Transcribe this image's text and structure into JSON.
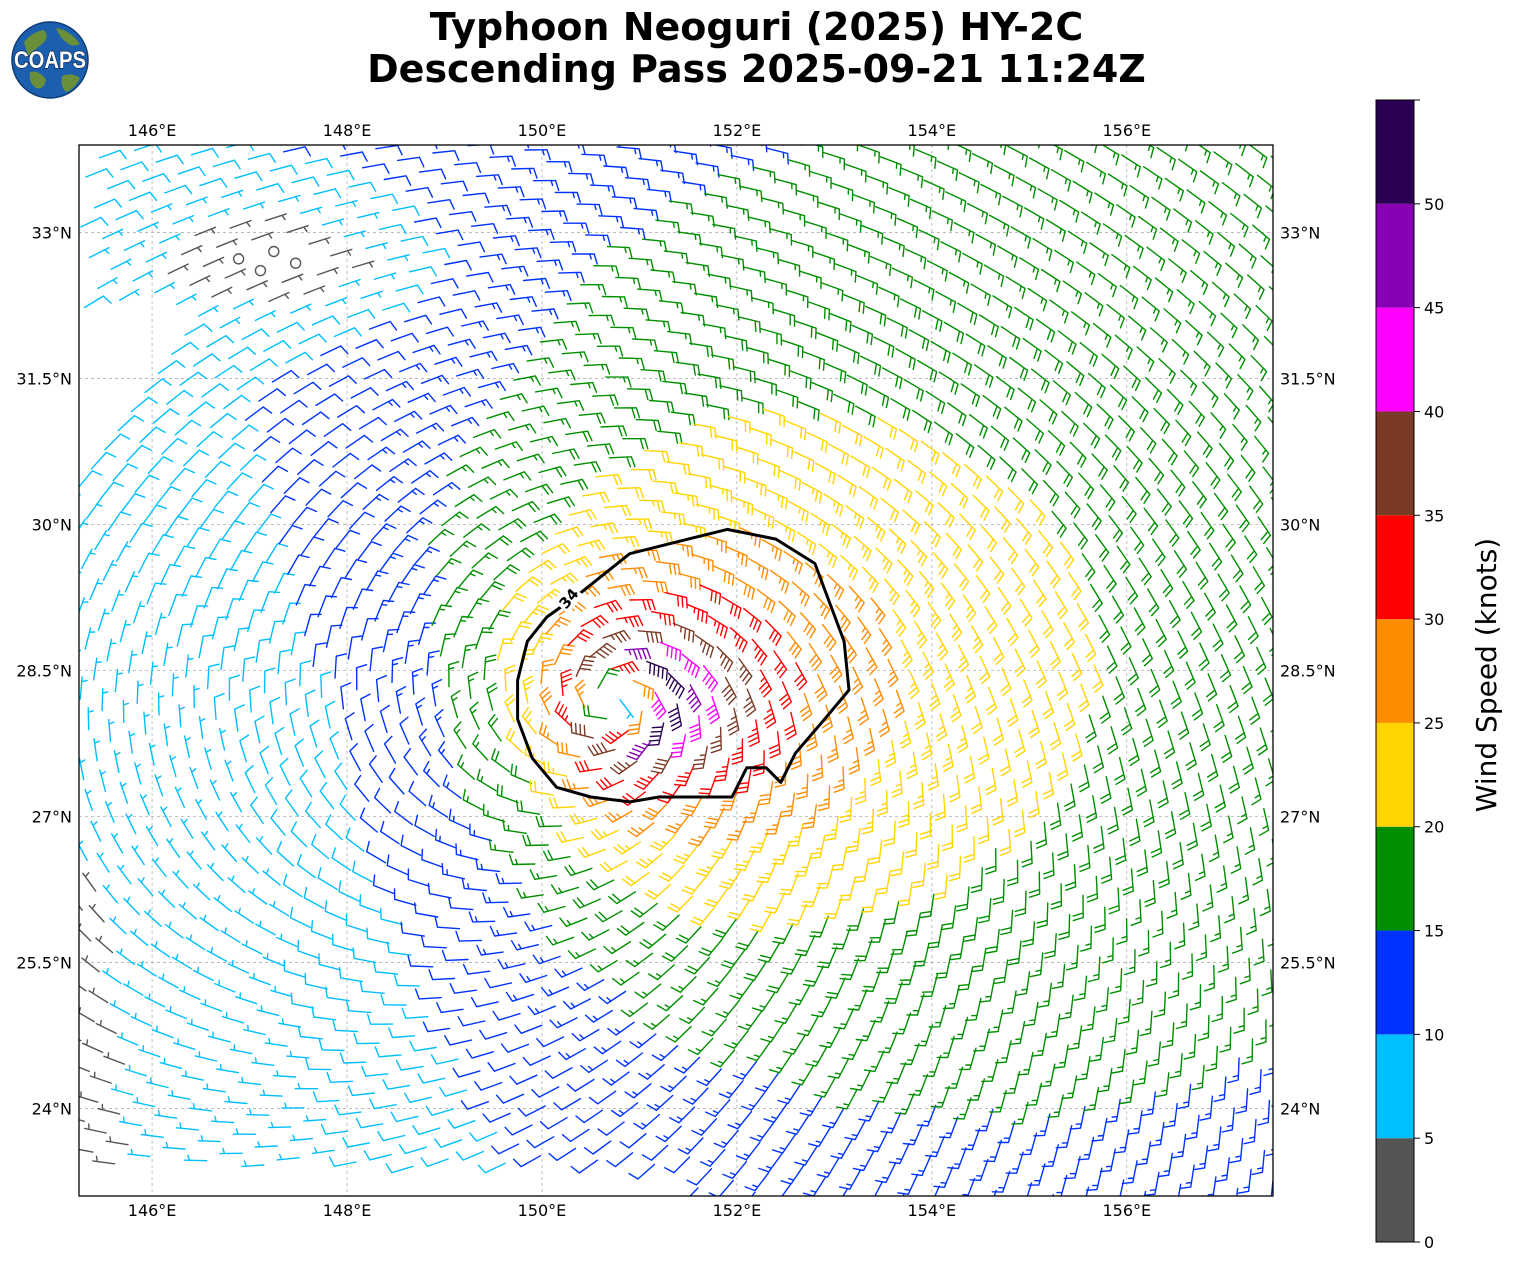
{
  "logo": {
    "text": "COAPS",
    "ocean_color": "#1b5fae",
    "land_color": "#6a8f3a"
  },
  "chart_data": {
    "type": "wind_barb_map",
    "title": "Typhoon Neoguri (2025) HY-2C",
    "subtitle": "Descending Pass 2025-09-21 11:24Z",
    "lon_range": [
      145.25,
      157.5
    ],
    "lat_range": [
      23.1,
      33.9
    ],
    "lon_ticks": [
      "146°E",
      "148°E",
      "150°E",
      "152°E",
      "154°E",
      "156°E"
    ],
    "lon_tick_values": [
      146,
      148,
      150,
      152,
      154,
      156
    ],
    "lat_ticks": [
      "24°N",
      "25.5°N",
      "27°N",
      "28.5°N",
      "30°N",
      "31.5°N",
      "33°N"
    ],
    "lat_tick_values": [
      24,
      25.5,
      27,
      28.5,
      30,
      31.5,
      33
    ],
    "gridlines": true,
    "storm_center": {
      "lon": 150.8,
      "lat": 28.2
    },
    "contour": {
      "label": "34",
      "value_knots": 34,
      "points": [
        [
          150.4,
          29.3
        ],
        [
          150.9,
          29.7
        ],
        [
          151.5,
          29.85
        ],
        [
          151.9,
          29.95
        ],
        [
          152.4,
          29.85
        ],
        [
          152.8,
          29.6
        ],
        [
          152.95,
          29.2
        ],
        [
          153.1,
          28.8
        ],
        [
          153.15,
          28.3
        ],
        [
          152.9,
          28.0
        ],
        [
          152.6,
          27.65
        ],
        [
          152.45,
          27.35
        ],
        [
          152.3,
          27.5
        ],
        [
          152.1,
          27.5
        ],
        [
          151.95,
          27.2
        ],
        [
          151.6,
          27.2
        ],
        [
          151.2,
          27.2
        ],
        [
          150.9,
          27.15
        ],
        [
          150.5,
          27.2
        ],
        [
          150.15,
          27.3
        ],
        [
          149.9,
          27.6
        ],
        [
          149.75,
          28.0
        ],
        [
          149.75,
          28.4
        ],
        [
          149.85,
          28.8
        ],
        [
          150.05,
          29.05
        ],
        [
          150.4,
          29.3
        ]
      ]
    },
    "colorbar": {
      "label": "Wind Speed (knots)",
      "tick_labels": [
        "0",
        "5",
        "10",
        "15",
        "20",
        "25",
        "30",
        "35",
        "40",
        "45",
        "50"
      ],
      "tick_values": [
        0,
        5,
        10,
        15,
        20,
        25,
        30,
        35,
        40,
        45,
        50
      ],
      "range": [
        0,
        55
      ],
      "bins": [
        {
          "min": 0,
          "max": 5,
          "color": "#555555"
        },
        {
          "min": 5,
          "max": 10,
          "color": "#00bfff"
        },
        {
          "min": 10,
          "max": 15,
          "color": "#0033ff"
        },
        {
          "min": 15,
          "max": 20,
          "color": "#008f00"
        },
        {
          "min": 20,
          "max": 25,
          "color": "#ffd400"
        },
        {
          "min": 25,
          "max": 30,
          "color": "#ff8c00"
        },
        {
          "min": 30,
          "max": 35,
          "color": "#ff0000"
        },
        {
          "min": 35,
          "max": 40,
          "color": "#7a3b26"
        },
        {
          "min": 40,
          "max": 45,
          "color": "#ff00ff"
        },
        {
          "min": 45,
          "max": 50,
          "color": "#8800b3"
        },
        {
          "min": 50,
          "max": 55,
          "color": "#2a0055"
        }
      ]
    }
  }
}
